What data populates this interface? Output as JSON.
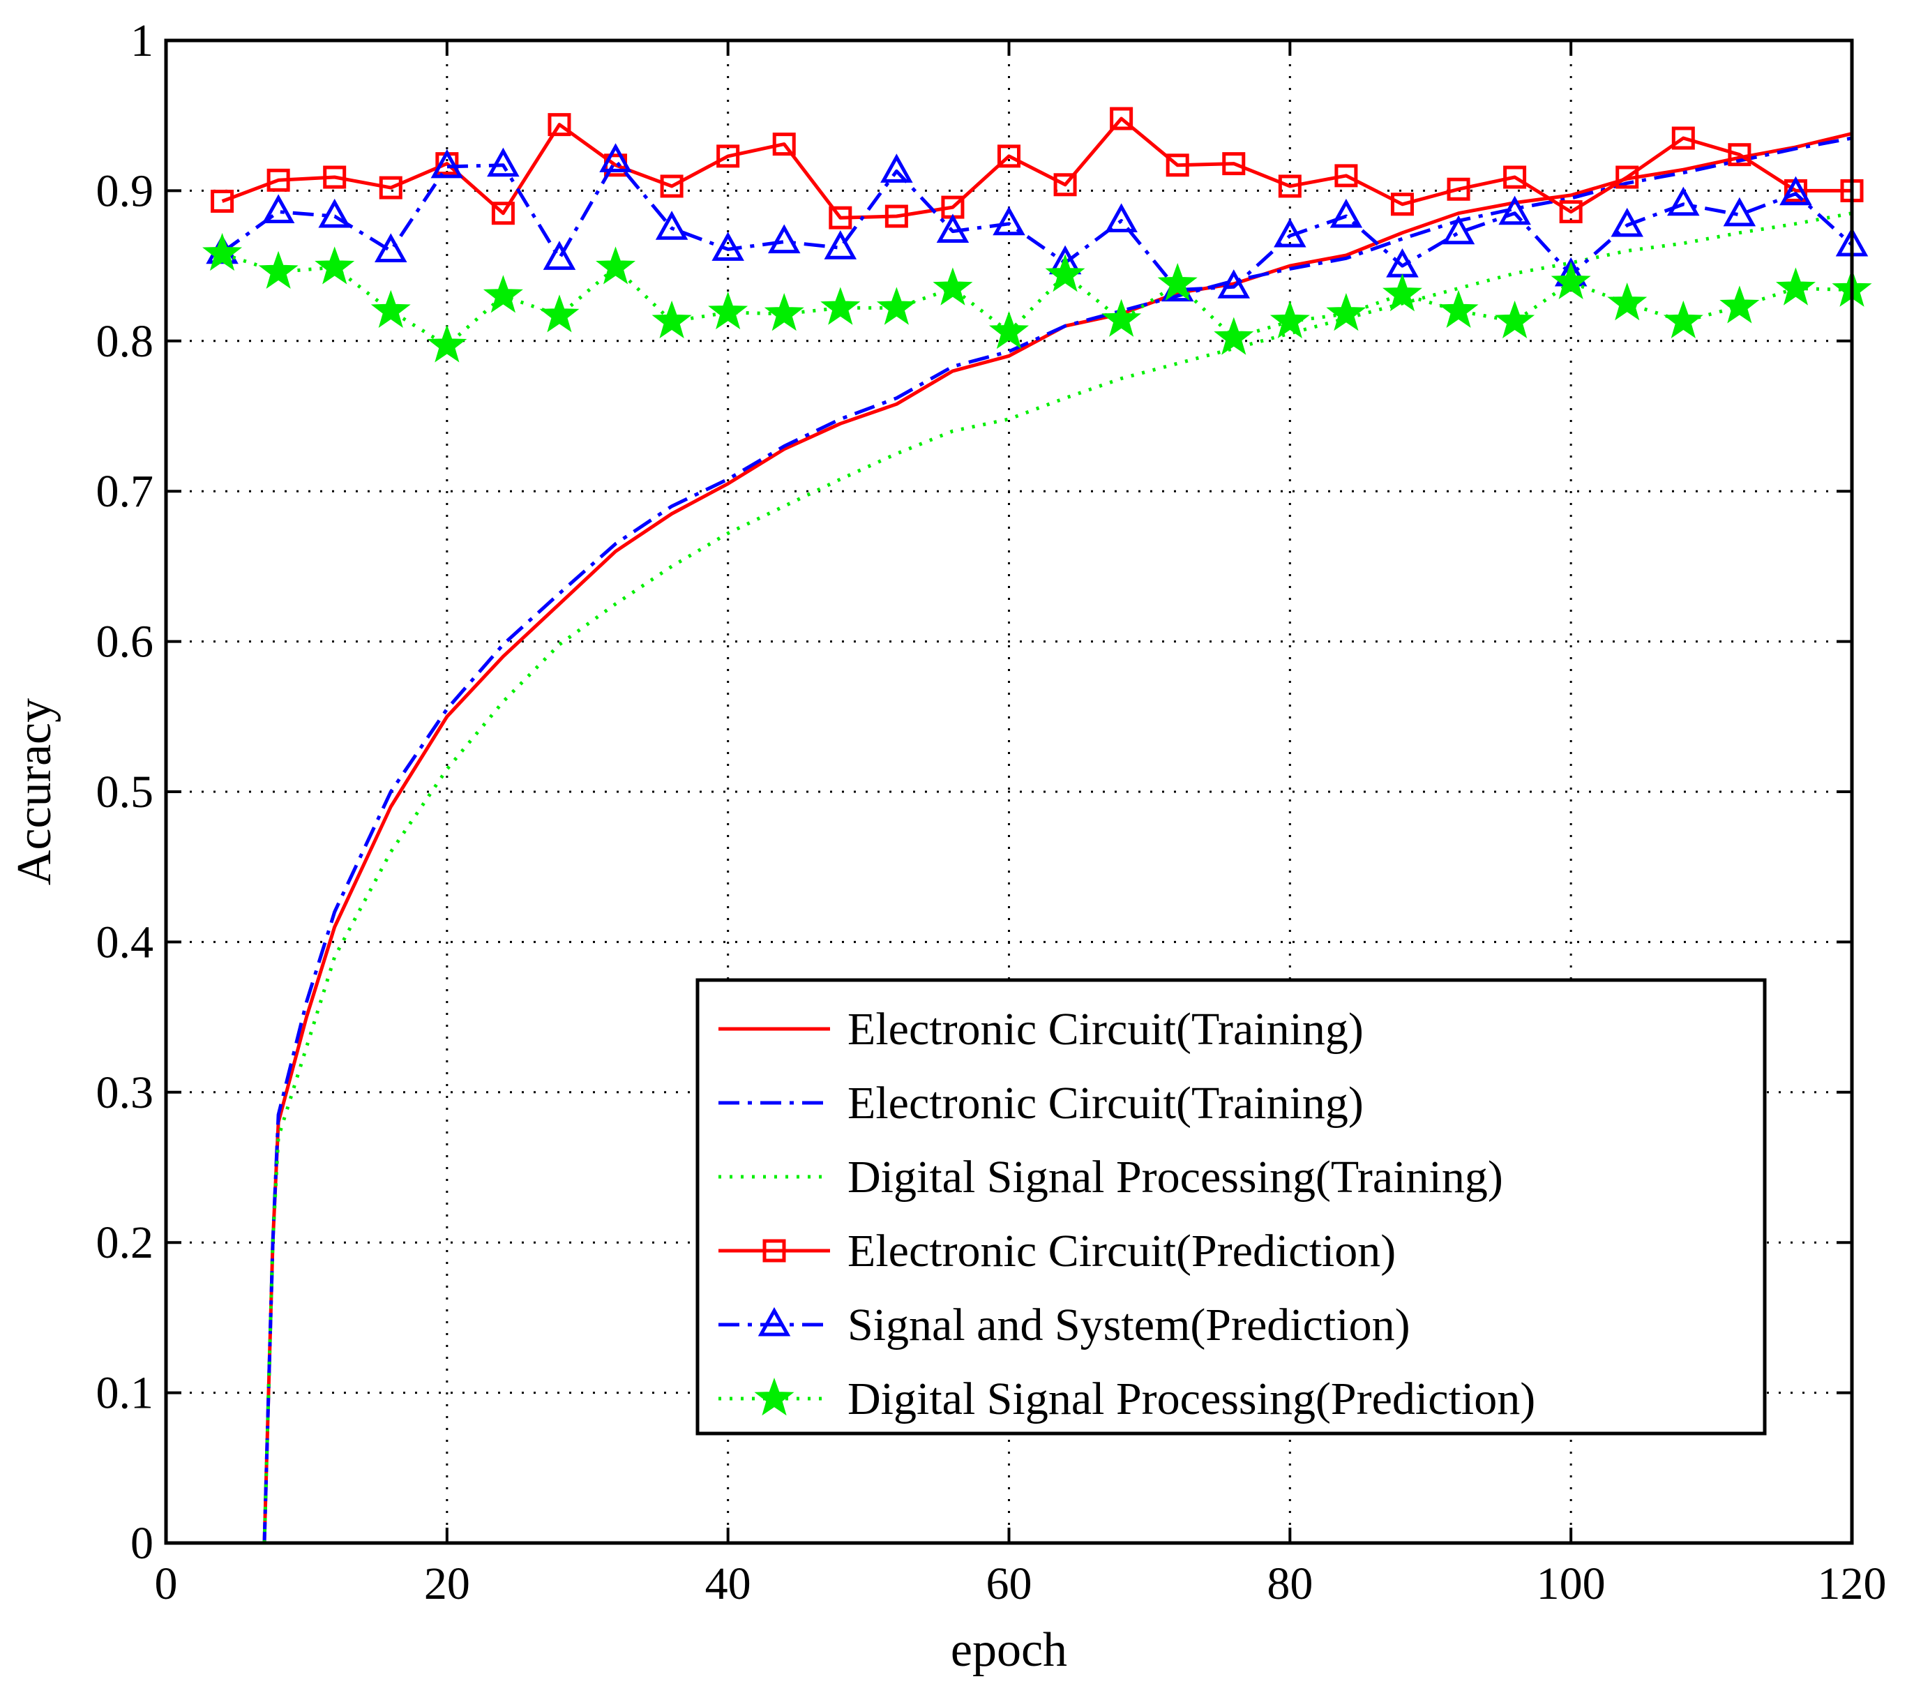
{
  "chart_data": {
    "type": "line",
    "title": "",
    "xlabel": "epoch",
    "ylabel": "Accuracy",
    "xlim": [
      0,
      120
    ],
    "ylim": [
      0,
      1
    ],
    "xticks": [
      0,
      20,
      40,
      60,
      80,
      100,
      120
    ],
    "xtick_labels": [
      "0",
      "20",
      "40",
      "60",
      "80",
      "100",
      "120"
    ],
    "yticks": [
      0,
      0.1,
      0.2,
      0.3,
      0.4,
      0.5,
      0.6,
      0.7,
      0.8,
      0.9,
      1
    ],
    "ytick_labels": [
      "0",
      "0.1",
      "0.2",
      "0.3",
      "0.4",
      "0.5",
      "0.6",
      "0.7",
      "0.8",
      "0.9",
      "1"
    ],
    "grid": true,
    "legend_position": "bottom-right",
    "series": [
      {
        "name": "Electronic Circuit(Training)",
        "color": "#ff0000",
        "line_style": "solid",
        "marker": "none",
        "x": [
          7,
          7.3,
          7.6,
          8,
          10,
          12,
          16,
          20,
          24,
          28,
          32,
          36,
          40,
          44,
          48,
          52,
          56,
          60,
          64,
          68,
          72,
          76,
          80,
          84,
          88,
          92,
          96,
          100,
          104,
          108,
          112,
          116,
          120
        ],
        "y": [
          0,
          0.1,
          0.2,
          0.28,
          0.35,
          0.41,
          0.49,
          0.55,
          0.59,
          0.625,
          0.66,
          0.685,
          0.705,
          0.728,
          0.745,
          0.758,
          0.78,
          0.79,
          0.81,
          0.818,
          0.832,
          0.838,
          0.85,
          0.857,
          0.872,
          0.885,
          0.892,
          0.897,
          0.908,
          0.914,
          0.922,
          0.929,
          0.938
        ]
      },
      {
        "name": "Electronic Circuit(Training)",
        "color": "#0000ff",
        "line_style": "dashdot",
        "marker": "none",
        "x": [
          7,
          7.3,
          7.6,
          8,
          10,
          12,
          16,
          20,
          24,
          28,
          32,
          36,
          40,
          44,
          48,
          52,
          56,
          60,
          64,
          68,
          72,
          76,
          80,
          84,
          88,
          92,
          96,
          100,
          104,
          108,
          112,
          116,
          120
        ],
        "y": [
          0,
          0.1,
          0.2,
          0.285,
          0.36,
          0.42,
          0.5,
          0.555,
          0.598,
          0.632,
          0.665,
          0.69,
          0.708,
          0.73,
          0.748,
          0.762,
          0.783,
          0.793,
          0.81,
          0.82,
          0.83,
          0.84,
          0.848,
          0.855,
          0.868,
          0.88,
          0.888,
          0.895,
          0.905,
          0.912,
          0.92,
          0.928,
          0.935
        ]
      },
      {
        "name": "Digital Signal Processing(Training)",
        "color": "#00ee00",
        "line_style": "dotted",
        "marker": "none",
        "x": [
          7,
          7.3,
          7.6,
          8,
          10,
          12,
          16,
          20,
          24,
          28,
          32,
          36,
          40,
          44,
          48,
          52,
          56,
          60,
          64,
          68,
          72,
          76,
          80,
          84,
          88,
          92,
          96,
          100,
          104,
          108,
          112,
          116,
          120
        ],
        "y": [
          0,
          0.1,
          0.2,
          0.27,
          0.33,
          0.39,
          0.46,
          0.515,
          0.56,
          0.598,
          0.625,
          0.65,
          0.672,
          0.69,
          0.708,
          0.725,
          0.74,
          0.748,
          0.762,
          0.775,
          0.785,
          0.795,
          0.805,
          0.815,
          0.825,
          0.835,
          0.845,
          0.852,
          0.86,
          0.865,
          0.872,
          0.878,
          0.885
        ]
      },
      {
        "name": "Electronic Circuit(Prediction)",
        "color": "#ff0000",
        "line_style": "solid",
        "marker": "square",
        "x": [
          4,
          8,
          12,
          16,
          20,
          24,
          28,
          32,
          36,
          40,
          44,
          48,
          52,
          56,
          60,
          64,
          68,
          72,
          76,
          80,
          84,
          88,
          92,
          96,
          100,
          104,
          108,
          112,
          116,
          120
        ],
        "y": [
          0.893,
          0.907,
          0.909,
          0.902,
          0.918,
          0.885,
          0.944,
          0.917,
          0.903,
          0.923,
          0.931,
          0.882,
          0.883,
          0.889,
          0.923,
          0.904,
          0.948,
          0.917,
          0.918,
          0.903,
          0.91,
          0.891,
          0.901,
          0.909,
          0.886,
          0.909,
          0.935,
          0.924,
          0.9,
          0.9
        ]
      },
      {
        "name": "Signal and System(Prediction)",
        "color": "#0000ff",
        "line_style": "dashdot",
        "marker": "triangle",
        "x": [
          4,
          8,
          12,
          16,
          20,
          24,
          28,
          32,
          36,
          40,
          44,
          48,
          52,
          56,
          60,
          64,
          68,
          72,
          76,
          80,
          84,
          88,
          92,
          96,
          100,
          104,
          108,
          112,
          116,
          120
        ],
        "y": [
          0.859,
          0.886,
          0.883,
          0.86,
          0.916,
          0.917,
          0.855,
          0.92,
          0.875,
          0.861,
          0.866,
          0.862,
          0.913,
          0.873,
          0.878,
          0.852,
          0.88,
          0.834,
          0.836,
          0.87,
          0.883,
          0.85,
          0.872,
          0.885,
          0.844,
          0.877,
          0.891,
          0.884,
          0.898,
          0.864
        ]
      },
      {
        "name": "Digital Signal Processing(Prediction)",
        "color": "#00ee00",
        "line_style": "dotted",
        "marker": "star",
        "x": [
          4,
          8,
          12,
          16,
          20,
          24,
          28,
          32,
          36,
          40,
          44,
          48,
          52,
          56,
          60,
          64,
          68,
          72,
          76,
          80,
          84,
          88,
          92,
          96,
          100,
          104,
          108,
          112,
          116,
          120
        ],
        "y": [
          0.858,
          0.846,
          0.849,
          0.82,
          0.797,
          0.83,
          0.817,
          0.849,
          0.813,
          0.819,
          0.818,
          0.822,
          0.822,
          0.835,
          0.806,
          0.844,
          0.814,
          0.838,
          0.802,
          0.813,
          0.818,
          0.831,
          0.82,
          0.813,
          0.839,
          0.825,
          0.813,
          0.823,
          0.835,
          0.834
        ]
      }
    ]
  }
}
